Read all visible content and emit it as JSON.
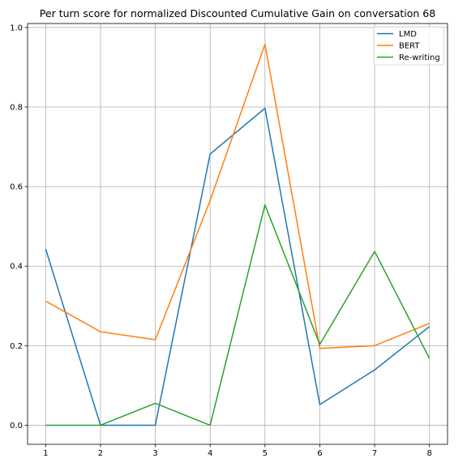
{
  "chart_data": {
    "type": "line",
    "title": "Per turn score for normalized Discounted Cumulative Gain on conversation 68",
    "xlabel": "",
    "ylabel": "",
    "x": [
      1,
      2,
      3,
      4,
      5,
      6,
      7,
      8
    ],
    "xlim": [
      0.67,
      8.33
    ],
    "ylim": [
      -0.048,
      1.01
    ],
    "xticks": [
      "1",
      "2",
      "3",
      "4",
      "5",
      "6",
      "7",
      "8"
    ],
    "yticks": [
      "0.0",
      "0.2",
      "0.4",
      "0.6",
      "0.8",
      "1.0"
    ],
    "grid": true,
    "legend_position": "top-right",
    "series": [
      {
        "name": "LMD",
        "color": "#1f77b4",
        "values": [
          0.443,
          0.0,
          0.0,
          0.682,
          0.797,
          0.052,
          0.139,
          0.248
        ]
      },
      {
        "name": "BERT",
        "color": "#ff7f0e",
        "values": [
          0.312,
          0.235,
          0.215,
          0.565,
          0.958,
          0.193,
          0.2,
          0.256
        ]
      },
      {
        "name": "Re-writing",
        "color": "#2ca02c",
        "values": [
          0.0,
          0.0,
          0.055,
          0.0,
          0.554,
          0.203,
          0.437,
          0.168
        ]
      }
    ]
  }
}
